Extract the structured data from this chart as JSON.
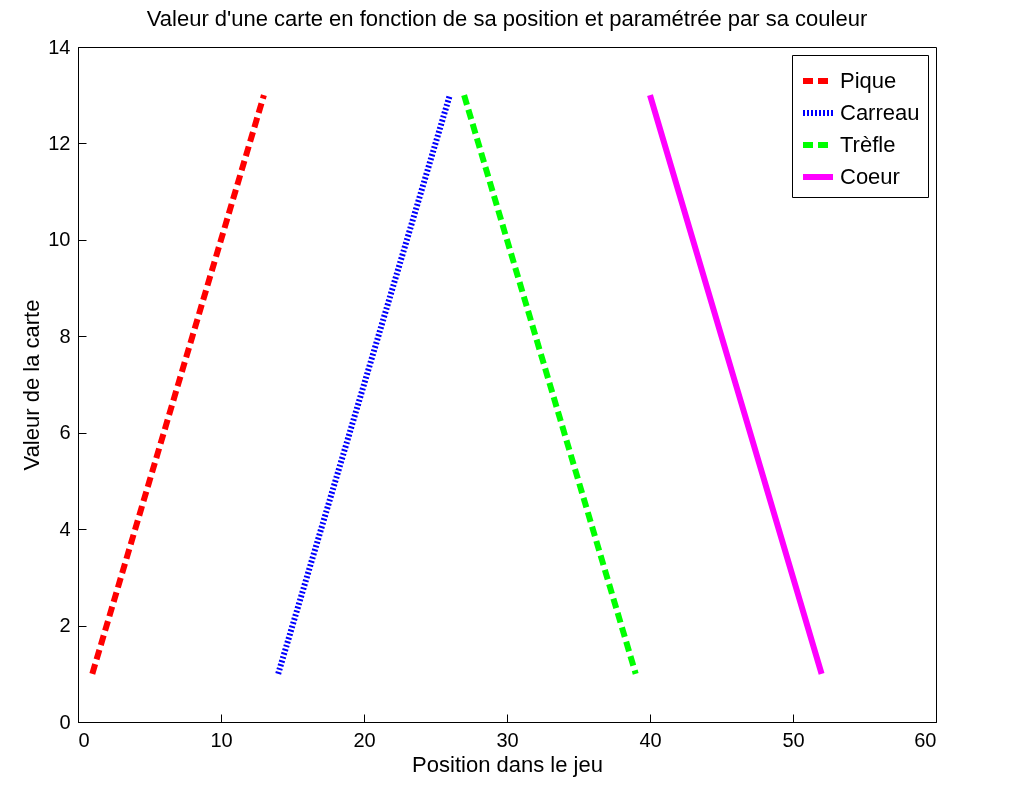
{
  "chart_data": {
    "type": "line",
    "title": "Valeur d'une carte en fonction de sa position et paramétrée par sa couleur",
    "xlabel": "Position dans le jeu",
    "ylabel": "Valeur de la carte",
    "xlim": [
      0,
      60
    ],
    "xticks": [
      0,
      10,
      20,
      30,
      40,
      50,
      60
    ],
    "ylim": [
      0,
      14
    ],
    "yticks": [
      0,
      2,
      4,
      6,
      8,
      10,
      12,
      14
    ],
    "grid": false,
    "legend": "top right",
    "series": [
      {
        "name": "Pique",
        "color": "#ff0000",
        "line_style": "dashed",
        "x": [
          1,
          2,
          3,
          4,
          5,
          6,
          7,
          8,
          9,
          10,
          11,
          12,
          13
        ],
        "values": [
          1,
          2,
          3,
          4,
          5,
          6,
          7,
          8,
          9,
          10,
          11,
          12,
          13
        ]
      },
      {
        "name": "Carreau",
        "color": "#0000ff",
        "line_style": "dotted",
        "x": [
          14,
          15,
          16,
          17,
          18,
          19,
          20,
          21,
          22,
          23,
          24,
          25,
          26
        ],
        "values": [
          1,
          2,
          3,
          4,
          5,
          6,
          7,
          8,
          9,
          10,
          11,
          12,
          13
        ]
      },
      {
        "name": "Trèfle",
        "color": "#00ff00",
        "line_style": "dashed",
        "x": [
          27,
          28,
          29,
          30,
          31,
          32,
          33,
          34,
          35,
          36,
          37,
          38,
          39
        ],
        "values": [
          13,
          12,
          11,
          10,
          9,
          8,
          7,
          6,
          5,
          4,
          3,
          2,
          1
        ]
      },
      {
        "name": "Coeur",
        "color": "#ff00ff",
        "line_style": "solid",
        "x": [
          40,
          41,
          42,
          43,
          44,
          45,
          46,
          47,
          48,
          49,
          50,
          51,
          52
        ],
        "values": [
          13,
          12,
          11,
          10,
          9,
          8,
          7,
          6,
          5,
          4,
          3,
          2,
          1
        ]
      }
    ]
  }
}
